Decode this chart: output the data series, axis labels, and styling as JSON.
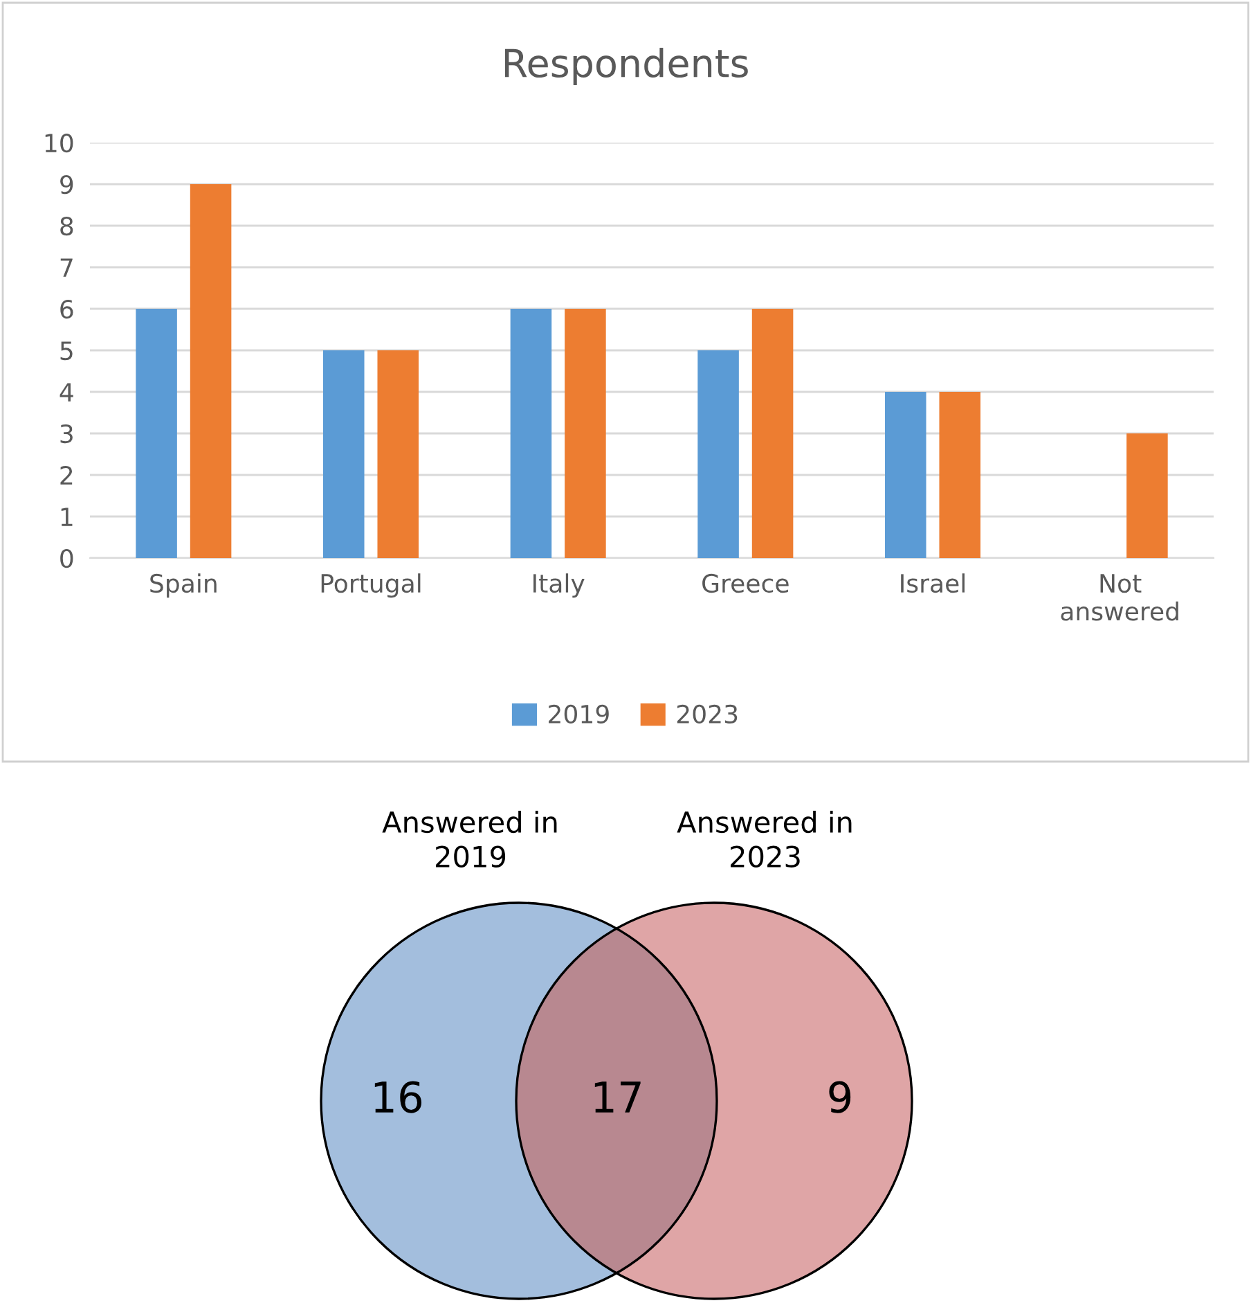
{
  "chart_data": [
    {
      "type": "bar",
      "title": "Respondents",
      "categories": [
        "Spain",
        "Portugal",
        "Italy",
        "Greece",
        "Israel",
        "Not answered"
      ],
      "series": [
        {
          "name": "2019",
          "color": "#5b9bd5",
          "values": [
            6,
            5,
            6,
            5,
            4,
            null
          ]
        },
        {
          "name": "2023",
          "color": "#ed7d31",
          "values": [
            9,
            5,
            6,
            6,
            4,
            3
          ]
        }
      ],
      "ylim": [
        0,
        10
      ],
      "yticks": [
        0,
        1,
        2,
        3,
        4,
        5,
        6,
        7,
        8,
        9,
        10
      ],
      "grid": "y",
      "legend": "bottom"
    },
    {
      "type": "other",
      "categories": [
        "Answered in 2019",
        null,
        "Answered in 2023"
      ],
      "values": [
        16,
        17,
        9
      ],
      "colors": [
        "#a3bedd",
        "#b88890",
        "#dfa5a6"
      ],
      "data_labels": true
    }
  ]
}
